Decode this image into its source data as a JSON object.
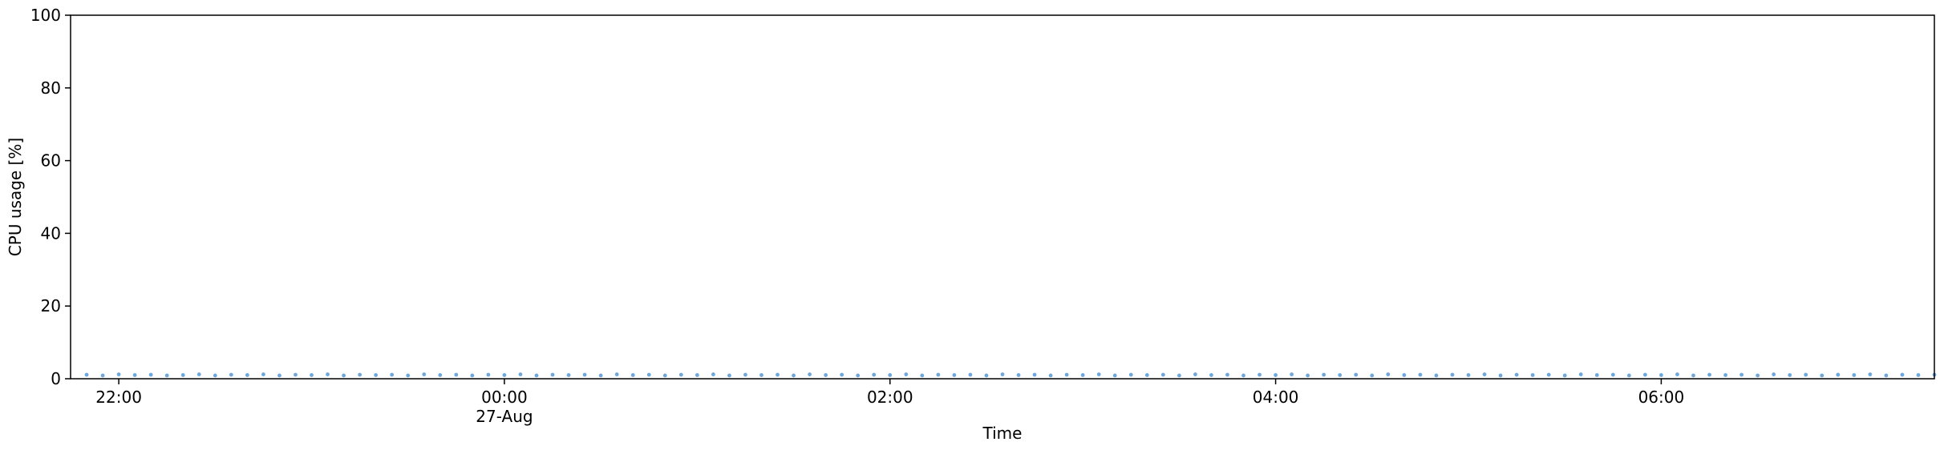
{
  "chart_data": {
    "type": "scatter",
    "title": "",
    "xlabel": "Time",
    "ylabel": "CPU usage [%]",
    "ylim": [
      0,
      100
    ],
    "xlim": [
      "2023-08-26T21:45",
      "2023-08-27T07:25"
    ],
    "y_ticks": [
      0,
      20,
      40,
      60,
      80,
      100
    ],
    "x_ticks": [
      {
        "t": "2023-08-26T22:00",
        "label": "22:00",
        "sublabel": ""
      },
      {
        "t": "2023-08-27T00:00",
        "label": "00:00",
        "sublabel": "27-Aug"
      },
      {
        "t": "2023-08-27T02:00",
        "label": "02:00",
        "sublabel": ""
      },
      {
        "t": "2023-08-27T04:00",
        "label": "04:00",
        "sublabel": ""
      },
      {
        "t": "2023-08-27T06:00",
        "label": "06:00",
        "sublabel": ""
      }
    ],
    "grid": false,
    "series": [
      {
        "color": "#6fa8dc",
        "start": "2023-08-26T21:50",
        "interval_minutes": 5,
        "values": [
          1.1,
          0.9,
          1.2,
          1.0,
          1.1,
          0.9,
          1.0,
          1.2,
          0.9,
          1.1,
          1.0,
          1.2,
          0.9,
          1.1,
          1.0,
          1.2,
          0.9,
          1.1,
          1.0,
          1.1,
          0.9,
          1.2,
          1.0,
          1.1,
          0.9,
          1.1,
          1.0,
          1.2,
          0.9,
          1.1,
          1.0,
          1.1,
          0.9,
          1.2,
          1.0,
          1.1,
          0.9,
          1.1,
          1.0,
          1.2,
          0.9,
          1.1,
          1.0,
          1.1,
          0.9,
          1.2,
          1.0,
          1.1,
          0.9,
          1.1,
          1.0,
          1.2,
          0.9,
          1.1,
          1.0,
          1.1,
          0.9,
          1.2,
          1.0,
          1.1,
          0.9,
          1.1,
          1.0,
          1.2,
          0.9,
          1.1,
          1.0,
          1.1,
          0.9,
          1.2,
          1.0,
          1.1,
          0.9,
          1.1,
          1.0,
          1.2,
          0.9,
          1.1,
          1.0,
          1.1,
          0.9,
          1.2,
          1.0,
          1.1,
          0.9,
          1.1,
          1.0,
          1.2,
          0.9,
          1.1,
          1.0,
          1.1,
          0.9,
          1.2,
          1.0,
          1.1,
          0.9,
          1.1,
          1.0,
          1.2,
          0.9,
          1.1,
          1.0,
          1.1,
          0.9,
          1.2,
          1.0,
          1.1,
          0.9,
          1.1,
          1.0,
          1.2,
          0.9,
          1.1,
          1.0,
          1.1,
          0.9
        ]
      }
    ]
  }
}
